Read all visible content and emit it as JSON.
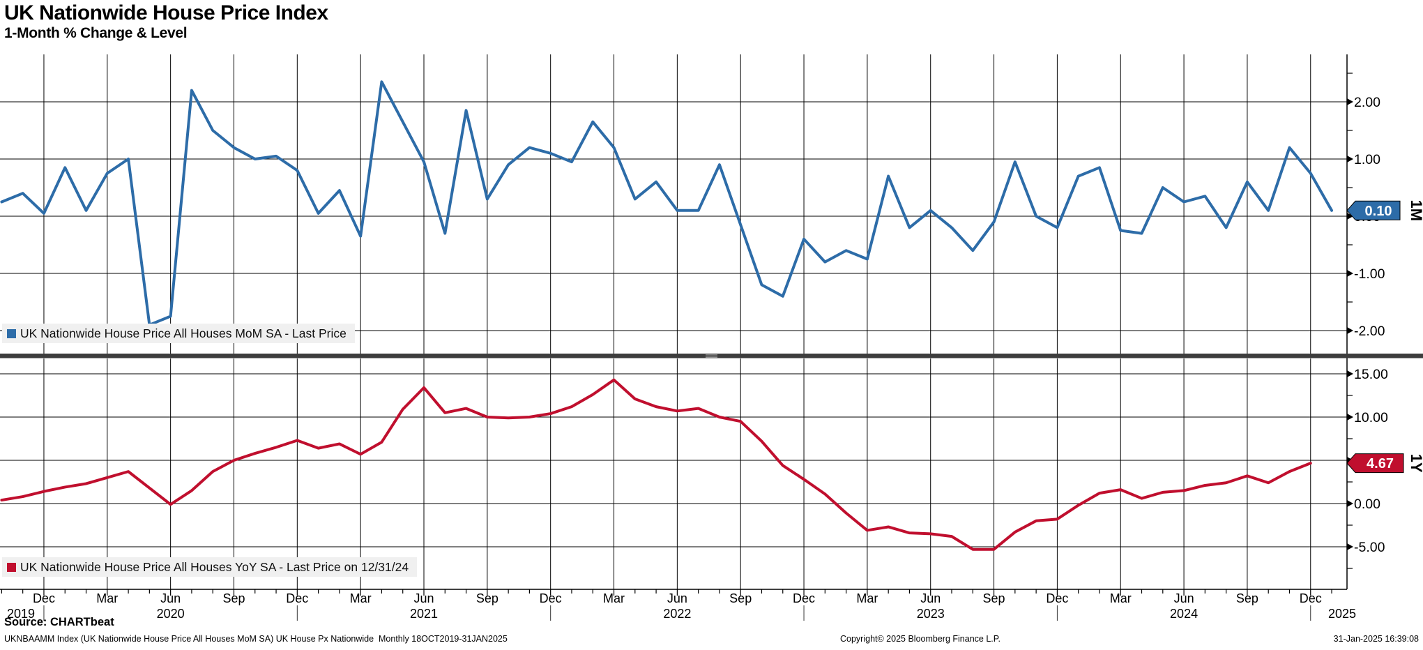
{
  "header": {
    "title": "UK Nationwide House Price Index",
    "subtitle": "1-Month % Change & Level"
  },
  "source_line": "Source: CHARTbeat",
  "footer": {
    "left": "UKNBAAMM Index (UK Nationwide House Price All Houses MoM SA) UK House Px Nationwide  Monthly 18OCT2019-31JAN2025",
    "center": "Copyright© 2025 Bloomberg Finance L.P.",
    "right": "31-Jan-2025 16:39:08"
  },
  "colors": {
    "mom_line": "#2d6ca8",
    "yoy_line": "#c00f2e",
    "grid": "#000000",
    "divider": "#3d3d3d",
    "divider_grip": "#9e9e9e",
    "legend_bg": "#f0f0f0",
    "tag_text": "#ffffff"
  },
  "chart_data": [
    {
      "type": "line",
      "panel": "top",
      "name": "UK Nationwide House Price All Houses MoM SA",
      "legend": "UK Nationwide House Price All Houses MoM SA - Last Price",
      "unit_label": "1M",
      "last_price_label": "0.10",
      "frequency": "monthly",
      "x_start": "Oct 2019",
      "x_end": "Jan 2025",
      "ylim": [
        -2.4,
        2.85
      ],
      "y_tick_labels": [
        "2.00",
        "1.00",
        "0.00",
        "-1.00",
        "-2.00"
      ],
      "y_minor_ticks": [
        2.5,
        1.5,
        0.5,
        -0.5,
        -1.5
      ],
      "values": [
        0.25,
        0.4,
        0.05,
        0.85,
        0.1,
        0.75,
        1.0,
        -1.9,
        -1.75,
        2.2,
        1.5,
        1.2,
        1.0,
        1.05,
        0.8,
        0.05,
        0.45,
        -0.35,
        2.35,
        1.65,
        0.95,
        -0.3,
        1.85,
        0.3,
        0.9,
        1.2,
        1.1,
        0.95,
        1.65,
        1.2,
        0.3,
        0.6,
        0.1,
        0.1,
        0.9,
        -0.15,
        -1.2,
        -1.4,
        -0.4,
        -0.8,
        -0.6,
        -0.75,
        0.7,
        -0.2,
        0.1,
        -0.2,
        -0.6,
        -0.1,
        0.95,
        0.0,
        -0.2,
        0.7,
        0.85,
        -0.25,
        -0.3,
        0.5,
        0.25,
        0.35,
        -0.2,
        0.6,
        0.1,
        1.2,
        0.75,
        0.1
      ]
    },
    {
      "type": "line",
      "panel": "bottom",
      "name": "UK Nationwide House Price All Houses YoY SA",
      "legend": "UK Nationwide House Price All Houses YoY SA - Last Price on 12/31/24",
      "unit_label": "1Y",
      "last_price_label": "4.67",
      "frequency": "monthly",
      "x_start": "Oct 2019",
      "x_end": "Dec 2024",
      "ylim": [
        -9.9,
        16.8
      ],
      "y_tick_labels": [
        "15.00",
        "10.00",
        "5.00",
        "0.00",
        "-5.00"
      ],
      "y_minor_ticks": [
        12.5,
        7.5,
        2.5,
        -2.5,
        -7.5
      ],
      "values": [
        0.4,
        0.8,
        1.4,
        1.9,
        2.3,
        3.0,
        3.7,
        1.8,
        -0.1,
        1.5,
        3.7,
        5.0,
        5.8,
        6.5,
        7.3,
        6.4,
        6.9,
        5.7,
        7.1,
        10.9,
        13.4,
        10.5,
        11.0,
        10.0,
        9.9,
        10.0,
        10.4,
        11.2,
        12.6,
        14.3,
        12.1,
        11.2,
        10.7,
        11.0,
        10.0,
        9.5,
        7.2,
        4.4,
        2.8,
        1.1,
        -1.1,
        -3.1,
        -2.7,
        -3.4,
        -3.5,
        -3.8,
        -5.3,
        -5.3,
        -3.3,
        -2.0,
        -1.8,
        -0.2,
        1.2,
        1.6,
        0.6,
        1.3,
        1.5,
        2.1,
        2.4,
        3.2,
        2.4,
        3.7,
        4.67
      ]
    }
  ],
  "x_axis": {
    "month_tick_labels": [
      "Dec",
      "Mar",
      "Jun",
      "Sep",
      "Dec",
      "Mar",
      "Jun",
      "Sep",
      "Dec",
      "Mar",
      "Jun",
      "Sep",
      "Dec",
      "Mar",
      "Jun",
      "Sep",
      "Dec",
      "Mar",
      "Jun",
      "Sep",
      "Dec"
    ],
    "year_labels": [
      "2019",
      "2020",
      "2021",
      "2022",
      "2023",
      "2024",
      "2025"
    ]
  }
}
